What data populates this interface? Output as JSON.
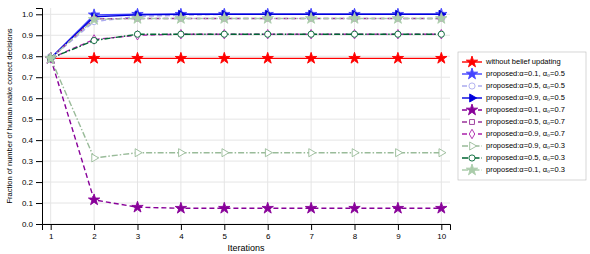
{
  "chart_data": {
    "type": "line",
    "xlabel": "Iterations",
    "ylabel": "Fraction of number of human make correct decisions",
    "x": [
      1,
      2,
      3,
      4,
      5,
      6,
      7,
      8,
      9,
      10
    ],
    "xlim": [
      0.8,
      10.2
    ],
    "ylim": [
      0,
      1.03
    ],
    "xticks": [
      1,
      2,
      3,
      4,
      5,
      6,
      7,
      8,
      9,
      10
    ],
    "yticks": [
      {
        "value": 0,
        "label": "0.0"
      },
      0.1,
      0.2,
      0.3,
      0.4,
      0.5,
      0.6,
      0.7,
      0.8,
      0.9,
      {
        "value": 1.0,
        "label": "1.0"
      }
    ],
    "grid": true,
    "legend": "right",
    "series": [
      {
        "name": "without belief updating",
        "color": "#ff0000",
        "line_style": "solid",
        "marker": "star",
        "values": [
          0.79,
          0.79,
          0.79,
          0.79,
          0.79,
          0.79,
          0.79,
          0.79,
          0.79,
          0.79
        ]
      },
      {
        "name": "proposed:α=0.1, α₀=0.5",
        "color": "#4444ff",
        "line_style": "solid",
        "marker": "star",
        "values": [
          0.79,
          0.997,
          1.0,
          1.0,
          1.0,
          1.0,
          1.0,
          1.0,
          1.0,
          1.0
        ]
      },
      {
        "name": "proposed:α=0.5, α₀=0.5",
        "color": "#aaaaee",
        "line_style": "dashed",
        "marker": "open-circle",
        "values": [
          0.79,
          0.965,
          0.99,
          0.995,
          1.0,
          1.0,
          1.0,
          1.0,
          1.0,
          1.0
        ]
      },
      {
        "name": "proposed:α=0.9, α₀=0.5",
        "color": "#0000dd",
        "line_style": "solid",
        "marker": "triangle-right",
        "values": [
          0.79,
          0.988,
          0.997,
          1.0,
          1.0,
          1.0,
          1.0,
          1.0,
          1.0,
          1.0
        ]
      },
      {
        "name": "proposed:α=0.1, α₀=0.7",
        "color": "#880099",
        "line_style": "dashed",
        "marker": "star",
        "values": [
          0.79,
          0.115,
          0.08,
          0.075,
          0.075,
          0.075,
          0.075,
          0.075,
          0.075,
          0.075
        ]
      },
      {
        "name": "proposed:α=0.5, α₀=0.7",
        "color": "#993399",
        "line_style": "dashed",
        "marker": "open-square",
        "values": [
          0.79,
          0.978,
          0.98,
          0.98,
          0.98,
          0.98,
          0.98,
          0.98,
          0.98,
          0.98
        ]
      },
      {
        "name": "proposed:α=0.9, α₀=0.7",
        "color": "#aa22aa",
        "line_style": "dashed",
        "marker": "open-diamond",
        "values": [
          0.79,
          0.88,
          0.9,
          0.905,
          0.905,
          0.905,
          0.905,
          0.905,
          0.905,
          0.905
        ]
      },
      {
        "name": "proposed:α=0.9, α₀=0.3",
        "color": "#99bb99",
        "line_style": "dashdot",
        "marker": "open-triangle-right",
        "values": [
          0.79,
          0.315,
          0.34,
          0.34,
          0.34,
          0.34,
          0.34,
          0.34,
          0.34,
          0.34
        ]
      },
      {
        "name": "proposed:α=0.5, α₀=0.3",
        "color": "#006633",
        "line_style": "dashdot",
        "marker": "open-circle",
        "values": [
          0.79,
          0.875,
          0.905,
          0.905,
          0.905,
          0.905,
          0.905,
          0.905,
          0.905,
          0.905
        ]
      },
      {
        "name": "proposed:α=0.1, α₀=0.3",
        "color": "#aaccaa",
        "line_style": "dashdot",
        "marker": "star",
        "values": [
          0.79,
          0.975,
          0.98,
          0.98,
          0.98,
          0.98,
          0.98,
          0.98,
          0.98,
          0.98
        ]
      }
    ]
  }
}
